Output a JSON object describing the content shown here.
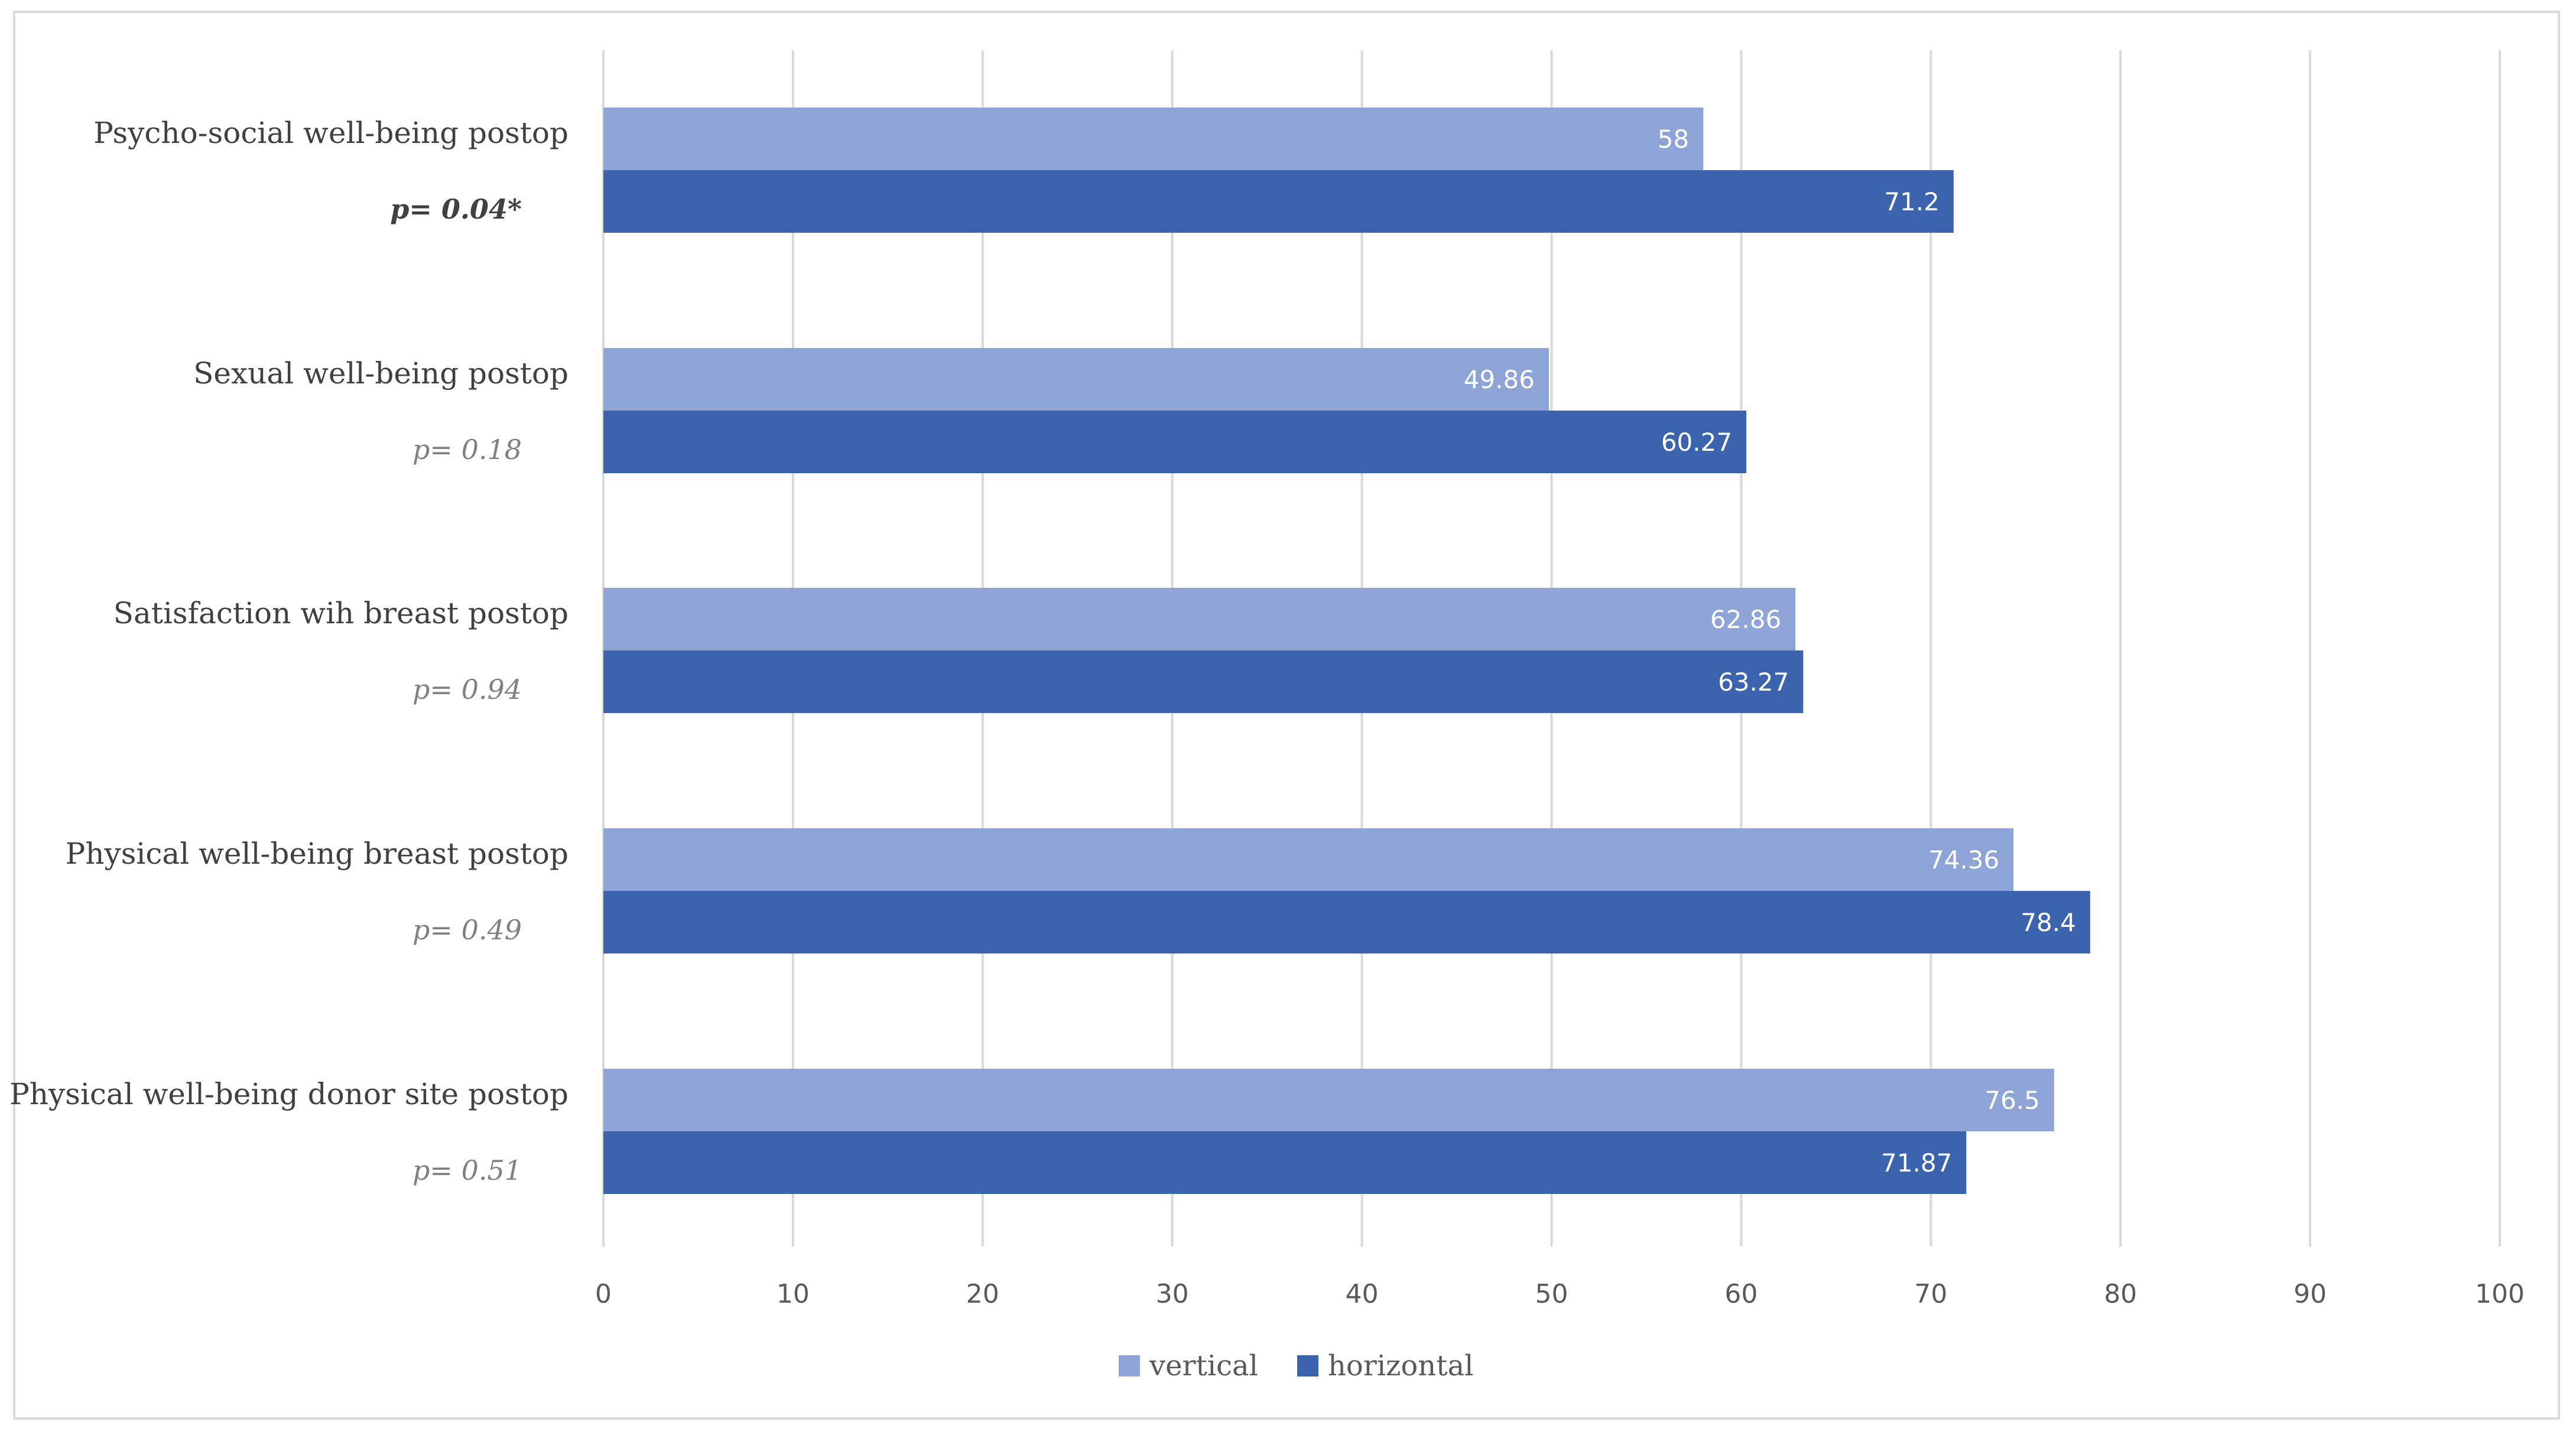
{
  "chart_data": {
    "type": "bar",
    "orientation": "horizontal",
    "categories": [
      "Psycho-social well-being postop",
      "Sexual well-being postop",
      "Satisfaction wih breast postop",
      "Physical well-being breast postop",
      "Physical well-being donor site postop"
    ],
    "p_values": [
      "p= 0.04*",
      "p= 0.18",
      "p= 0.94",
      "p= 0.49",
      "p= 0.51"
    ],
    "significant": [
      true,
      false,
      false,
      false,
      false
    ],
    "series": [
      {
        "name": "vertical",
        "color": "#8ea3d6",
        "values": [
          58,
          49.86,
          62.86,
          74.36,
          76.5
        ],
        "labels": [
          "58",
          "49.86",
          "62.86",
          "74.36",
          "76.5"
        ]
      },
      {
        "name": "horizontal",
        "color": "#3c63ad",
        "values": [
          71.2,
          60.27,
          63.27,
          78.4,
          71.87
        ],
        "labels": [
          "71.2",
          "60.27",
          "63.27",
          "78.4",
          "71.87"
        ]
      }
    ],
    "xlim": [
      0,
      100
    ],
    "xticks": [
      "0",
      "10",
      "20",
      "30",
      "40",
      "50",
      "60",
      "70",
      "80",
      "90",
      "100"
    ],
    "grid": true,
    "legend_position": "bottom",
    "gridline_color": "#d9d9d9"
  }
}
